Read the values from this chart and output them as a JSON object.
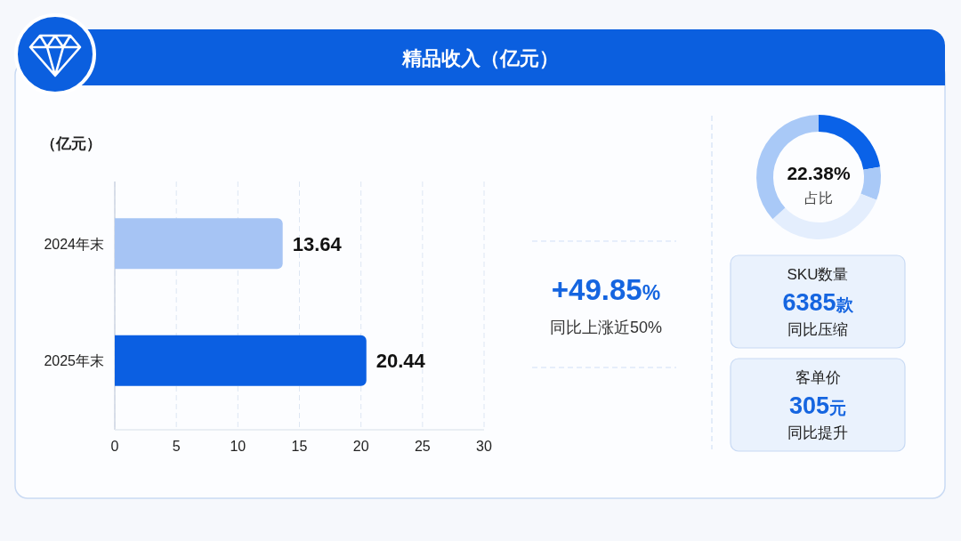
{
  "chart_data": [
    {
      "type": "bar",
      "title": "精品收入（亿元）",
      "xlabel": "（亿元）",
      "orientation": "horizontal",
      "categories": [
        "2024年末",
        "2025年末"
      ],
      "values": [
        13.64,
        20.44
      ],
      "colors": [
        "#a6c4f4",
        "#0b5fe2"
      ],
      "xlim": [
        0,
        30
      ],
      "xticks": [
        0,
        5,
        10,
        15,
        20,
        25,
        30
      ],
      "grid": "x",
      "data_labels": true,
      "annotations": [
        "+49.85%",
        "同比上涨近50%"
      ]
    },
    {
      "type": "donut",
      "categories": [
        null,
        null,
        null,
        null
      ],
      "values": [
        22.38,
        8.62,
        32.2,
        36.8
      ],
      "colors": [
        "#0a62e8",
        "#a9c9f7",
        "#e4eefd",
        "#a9c9f7"
      ],
      "annotations": [
        "22.38%",
        "占比"
      ]
    },
    {
      "type": "other",
      "annotations": [
        "SKU数量",
        "6385款",
        "同比压缩",
        "客单价",
        "305元",
        "同比提升"
      ]
    }
  ]
}
